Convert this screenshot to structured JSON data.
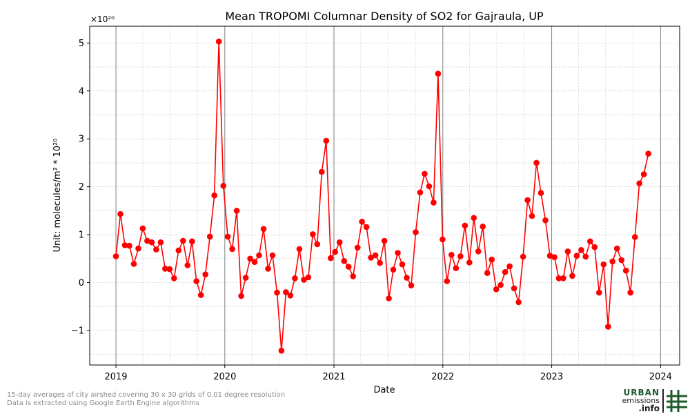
{
  "chart_data": {
    "type": "line",
    "title": "Mean TROPOMI Columnar Density of SO2 for Gajraula, UP",
    "xlabel": "Date",
    "ylabel": "Unit: molecules/m² * 10²⁰",
    "y_multiplier_label": "×10²⁰",
    "xlim": [
      "2018-10-05",
      "2024-03-05"
    ],
    "ylim": [
      -1.72,
      5.35
    ],
    "x_ticks": [
      "2019-01-01",
      "2020-01-01",
      "2021-01-01",
      "2022-01-01",
      "2023-01-01",
      "2024-01-01"
    ],
    "x_tick_labels": [
      "2019",
      "2020",
      "2021",
      "2022",
      "2023",
      "2024"
    ],
    "y_ticks": [
      -1,
      0,
      1,
      2,
      3,
      4,
      5
    ],
    "y_tick_labels": [
      "−1",
      "0",
      "1",
      "2",
      "3",
      "4",
      "5"
    ],
    "grid": true,
    "series": [
      {
        "color": "#ff0000",
        "marker": "circle",
        "points": [
          [
            "2019-01-01",
            0.55
          ],
          [
            "2019-01-16",
            1.43
          ],
          [
            "2019-01-31",
            0.78
          ],
          [
            "2019-02-15",
            0.77
          ],
          [
            "2019-03-02",
            0.39
          ],
          [
            "2019-03-17",
            0.71
          ],
          [
            "2019-04-01",
            1.13
          ],
          [
            "2019-04-16",
            0.87
          ],
          [
            "2019-05-01",
            0.84
          ],
          [
            "2019-05-16",
            0.69
          ],
          [
            "2019-05-31",
            0.84
          ],
          [
            "2019-06-15",
            0.29
          ],
          [
            "2019-06-30",
            0.28
          ],
          [
            "2019-07-15",
            0.09
          ],
          [
            "2019-07-30",
            0.67
          ],
          [
            "2019-08-14",
            0.87
          ],
          [
            "2019-08-29",
            0.36
          ],
          [
            "2019-09-13",
            0.86
          ],
          [
            "2019-09-28",
            0.03
          ],
          [
            "2019-10-13",
            -0.26
          ],
          [
            "2019-10-28",
            0.17
          ],
          [
            "2019-11-12",
            0.96
          ],
          [
            "2019-11-27",
            1.82
          ],
          [
            "2019-12-12",
            5.03
          ],
          [
            "2019-12-27",
            2.02
          ],
          [
            "2020-01-11",
            0.96
          ],
          [
            "2020-01-26",
            0.7
          ],
          [
            "2020-02-10",
            1.5
          ],
          [
            "2020-02-25",
            -0.28
          ],
          [
            "2020-03-11",
            0.1
          ],
          [
            "2020-03-26",
            0.5
          ],
          [
            "2020-04-10",
            0.43
          ],
          [
            "2020-04-25",
            0.57
          ],
          [
            "2020-05-10",
            1.12
          ],
          [
            "2020-05-25",
            0.29
          ],
          [
            "2020-06-09",
            0.57
          ],
          [
            "2020-06-24",
            -0.21
          ],
          [
            "2020-07-09",
            -1.42
          ],
          [
            "2020-07-24",
            -0.2
          ],
          [
            "2020-08-08",
            -0.27
          ],
          [
            "2020-08-23",
            0.09
          ],
          [
            "2020-09-07",
            0.7
          ],
          [
            "2020-09-22",
            0.06
          ],
          [
            "2020-10-07",
            0.11
          ],
          [
            "2020-10-22",
            1.01
          ],
          [
            "2020-11-06",
            0.8
          ],
          [
            "2020-11-21",
            2.31
          ],
          [
            "2020-12-06",
            2.96
          ],
          [
            "2020-12-21",
            0.51
          ],
          [
            "2021-01-05",
            0.64
          ],
          [
            "2021-01-20",
            0.84
          ],
          [
            "2021-02-04",
            0.45
          ],
          [
            "2021-02-19",
            0.33
          ],
          [
            "2021-03-06",
            0.13
          ],
          [
            "2021-03-21",
            0.73
          ],
          [
            "2021-04-05",
            1.27
          ],
          [
            "2021-04-20",
            1.16
          ],
          [
            "2021-05-05",
            0.52
          ],
          [
            "2021-05-20",
            0.57
          ],
          [
            "2021-06-04",
            0.41
          ],
          [
            "2021-06-19",
            0.87
          ],
          [
            "2021-07-04",
            -0.33
          ],
          [
            "2021-07-19",
            0.27
          ],
          [
            "2021-08-03",
            0.62
          ],
          [
            "2021-08-18",
            0.38
          ],
          [
            "2021-09-02",
            0.1
          ],
          [
            "2021-09-17",
            -0.06
          ],
          [
            "2021-10-02",
            1.05
          ],
          [
            "2021-10-17",
            1.88
          ],
          [
            "2021-11-01",
            2.27
          ],
          [
            "2021-11-16",
            2.01
          ],
          [
            "2021-12-01",
            1.67
          ],
          [
            "2021-12-16",
            4.36
          ],
          [
            "2021-12-31",
            0.9
          ],
          [
            "2022-01-15",
            0.03
          ],
          [
            "2022-01-30",
            0.58
          ],
          [
            "2022-02-14",
            0.3
          ],
          [
            "2022-03-01",
            0.55
          ],
          [
            "2022-03-16",
            1.19
          ],
          [
            "2022-03-31",
            0.42
          ],
          [
            "2022-04-15",
            1.35
          ],
          [
            "2022-04-30",
            0.65
          ],
          [
            "2022-05-15",
            1.17
          ],
          [
            "2022-05-30",
            0.2
          ],
          [
            "2022-06-14",
            0.48
          ],
          [
            "2022-06-29",
            -0.14
          ],
          [
            "2022-07-14",
            -0.05
          ],
          [
            "2022-07-29",
            0.22
          ],
          [
            "2022-08-13",
            0.34
          ],
          [
            "2022-08-28",
            -0.12
          ],
          [
            "2022-09-12",
            -0.41
          ],
          [
            "2022-09-27",
            0.54
          ],
          [
            "2022-10-12",
            1.72
          ],
          [
            "2022-10-27",
            1.39
          ],
          [
            "2022-11-11",
            2.5
          ],
          [
            "2022-11-26",
            1.87
          ],
          [
            "2022-12-11",
            1.3
          ],
          [
            "2022-12-26",
            0.56
          ],
          [
            "2023-01-10",
            0.53
          ],
          [
            "2023-01-25",
            0.09
          ],
          [
            "2023-02-09",
            0.09
          ],
          [
            "2023-02-24",
            0.65
          ],
          [
            "2023-03-11",
            0.14
          ],
          [
            "2023-03-26",
            0.56
          ],
          [
            "2023-04-10",
            0.68
          ],
          [
            "2023-04-25",
            0.54
          ],
          [
            "2023-05-10",
            0.86
          ],
          [
            "2023-05-25",
            0.74
          ],
          [
            "2023-06-09",
            -0.21
          ],
          [
            "2023-06-24",
            0.38
          ],
          [
            "2023-07-09",
            -0.92
          ],
          [
            "2023-07-24",
            0.44
          ],
          [
            "2023-08-08",
            0.71
          ],
          [
            "2023-08-23",
            0.47
          ],
          [
            "2023-09-07",
            0.25
          ],
          [
            "2023-09-22",
            -0.21
          ],
          [
            "2023-10-07",
            0.95
          ],
          [
            "2023-10-22",
            2.07
          ],
          [
            "2023-11-06",
            2.26
          ],
          [
            "2023-11-21",
            2.69
          ]
        ]
      }
    ]
  },
  "footnotes": {
    "line1": "15-day averages of city airshed covering 30 x 30 grids of 0.01 degree resolution",
    "line2": "Data is extracted using Google Earth Engine algorithms"
  },
  "logo": {
    "word1": "URBAN",
    "word2": "emissions",
    "word3": ".info"
  },
  "colors": {
    "series": "#ff0000",
    "year_gridline": "#808080",
    "minor_grid": "#d0d0d0",
    "logo_green": "#1d5a2a"
  }
}
